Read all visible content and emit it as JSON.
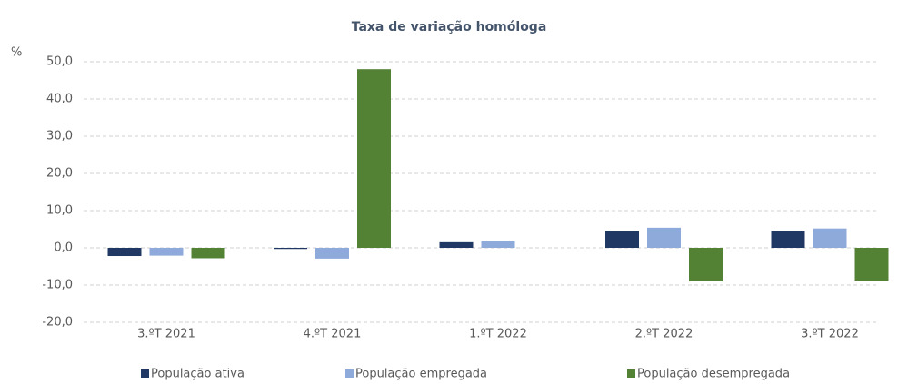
{
  "chart_data": {
    "type": "bar",
    "title": "Taxa de variação homóloga",
    "y_unit": "%",
    "categories": [
      "3.ºT 2021",
      "4.ºT 2021",
      "1.ºT 2022",
      "2.ºT 2022",
      "3.ºT 2022"
    ],
    "series": [
      {
        "name": "População ativa",
        "color": "#1f3864",
        "values": [
          -2.2,
          -0.3,
          1.5,
          4.6,
          4.4
        ]
      },
      {
        "name": "População empregada",
        "color": "#8eaadb",
        "values": [
          -2.1,
          -2.9,
          1.7,
          5.4,
          5.2
        ]
      },
      {
        "name": "População desempregada",
        "color": "#548235",
        "values": [
          -2.8,
          48.0,
          0,
          -9.0,
          -8.8
        ]
      }
    ],
    "ylim": [
      -20,
      50
    ],
    "yticks": [
      {
        "value": -20,
        "label": "-20,0"
      },
      {
        "value": -10,
        "label": "-10,0"
      },
      {
        "value": 0,
        "label": "0,0"
      },
      {
        "value": 10,
        "label": "10,0"
      },
      {
        "value": 20,
        "label": "20,0"
      },
      {
        "value": 30,
        "label": "30,0"
      },
      {
        "value": 40,
        "label": "40,0"
      },
      {
        "value": 50,
        "label": "50,0"
      }
    ],
    "grid": true,
    "legend": "bottom"
  }
}
